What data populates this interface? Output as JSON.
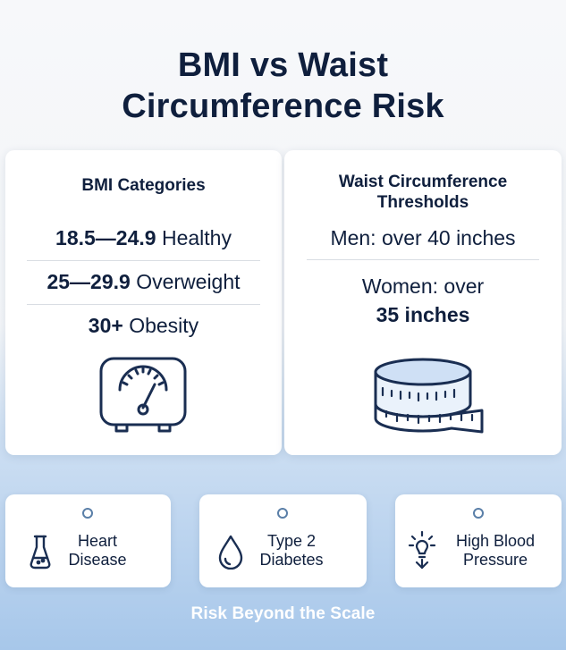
{
  "title": {
    "line1": "BMI vs Waist",
    "line2": "Circumference Risk"
  },
  "bmi_card": {
    "heading": "BMI Categories",
    "rows": [
      {
        "range": "18.5—24.9",
        "label": "Healthy"
      },
      {
        "range": "25—29.9",
        "label": "Overweight"
      },
      {
        "range": "30+",
        "label": "Obesity"
      }
    ],
    "icon": "scale-icon"
  },
  "waist_card": {
    "heading_line1": "Waist Circumference",
    "heading_line2": "Thresholds",
    "men": "Men: over 40 inches",
    "women_line1": "Women: over",
    "women_line2": "35 inches",
    "icon": "tape-measure-icon"
  },
  "risks": [
    {
      "line1": "Heart",
      "line2": "Disease",
      "icon": "flask-icon"
    },
    {
      "line1": "Type 2",
      "line2": "Diabetes",
      "icon": "drop-icon"
    },
    {
      "line1": "High Blood",
      "line2": "Pressure",
      "icon": "bulb-icon"
    }
  ],
  "footer": "Risk Beyond the Scale",
  "colors": {
    "text": "#0f1f3d",
    "icon_stroke": "#1a2e52",
    "tape_fill": "#cfe0f5",
    "background_bottom": "#a7c7ea"
  }
}
